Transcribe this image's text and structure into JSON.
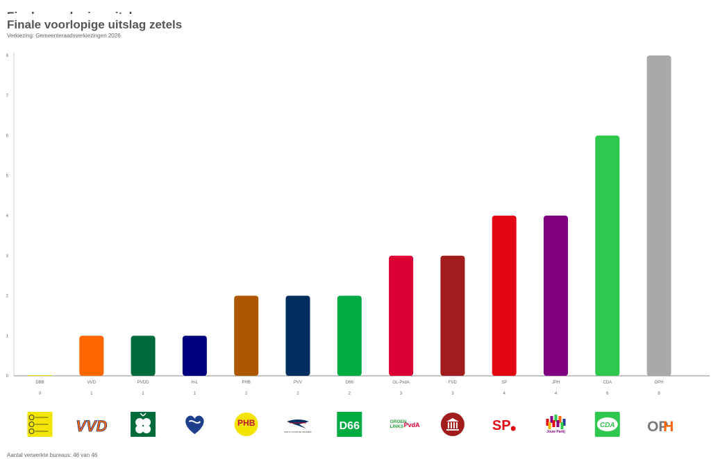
{
  "header": {
    "title_ghost": "Finale voorlopige uitslag",
    "title": "Finale voorlopige uitslag zetels",
    "subtitle": "Verkiezing: Gemeenteraadsverkiezingen 2026"
  },
  "footer": {
    "text": "Aantal verwerkte bureaus: 46 van 46"
  },
  "chart_data": {
    "type": "bar",
    "categories": [
      "DBB",
      "VVD",
      "PVDD",
      "H-L",
      "PHB",
      "PVV",
      "D66",
      "GL-PvdA",
      "FVD",
      "SP",
      "JPH",
      "CDA",
      "OPH"
    ],
    "values": [
      0,
      1,
      1,
      1,
      2,
      2,
      2,
      3,
      3,
      4,
      4,
      6,
      8
    ],
    "value_labels": [
      "0",
      "1",
      "1",
      "1",
      "2",
      "2",
      "2",
      "3",
      "3",
      "4",
      "4",
      "6",
      "8"
    ],
    "colors": [
      "#f2e500",
      "#ff6600",
      "#006b3a",
      "#00007f",
      "#ad5700",
      "#002f5f",
      "#00ac42",
      "#dc0034",
      "#a11c1c",
      "#e30613",
      "#800080",
      "#2dc84d",
      "#a9a9a9"
    ],
    "ylim": [
      0,
      8
    ],
    "yticks": [
      "0",
      "1",
      "2",
      "3",
      "4",
      "5",
      "6",
      "7",
      "8"
    ],
    "grid": false,
    "xlabel": "",
    "ylabel": "",
    "logos": [
      {
        "icon": "dbb-logo",
        "text": "",
        "bg": "#f2e500",
        "fg": "#333333"
      },
      {
        "icon": "vvd-logo",
        "text": "VVD",
        "bg": "#ffffff",
        "fg": "#ff6600"
      },
      {
        "icon": "pvdd-logo",
        "text": "",
        "bg": "#006b3a",
        "fg": "#ffffff"
      },
      {
        "icon": "hl-logo",
        "text": "",
        "bg": "#ffffff",
        "fg": "#1c3e8c"
      },
      {
        "icon": "phb-logo",
        "text": "PHB",
        "bg": "#f5e400",
        "fg": "#c8102e"
      },
      {
        "icon": "pvv-logo",
        "text": "PARTIJ VOOR DE VRIJHEID",
        "bg": "#ffffff",
        "fg": "#002f5f"
      },
      {
        "icon": "d66-logo",
        "text": "D66",
        "bg": "#00ac42",
        "fg": "#ffffff"
      },
      {
        "icon": "glpvda-logo",
        "text": "GROEN LINKS PvdA",
        "bg": "#ffffff",
        "fg": "#dc0034"
      },
      {
        "icon": "fvd-logo",
        "text": "",
        "bg": "#a11c1c",
        "fg": "#ffffff"
      },
      {
        "icon": "sp-logo",
        "text": "SP",
        "bg": "#ffffff",
        "fg": "#e30613"
      },
      {
        "icon": "jph-logo",
        "text": "Jouw Partij",
        "bg": "#ffffff",
        "fg": "#800080"
      },
      {
        "icon": "cda-logo",
        "text": "CDA",
        "bg": "#2dc84d",
        "fg": "#ffffff"
      },
      {
        "icon": "oph-logo",
        "text": "OPH",
        "bg": "#ffffff",
        "fg": "#7a7a7a"
      }
    ]
  }
}
